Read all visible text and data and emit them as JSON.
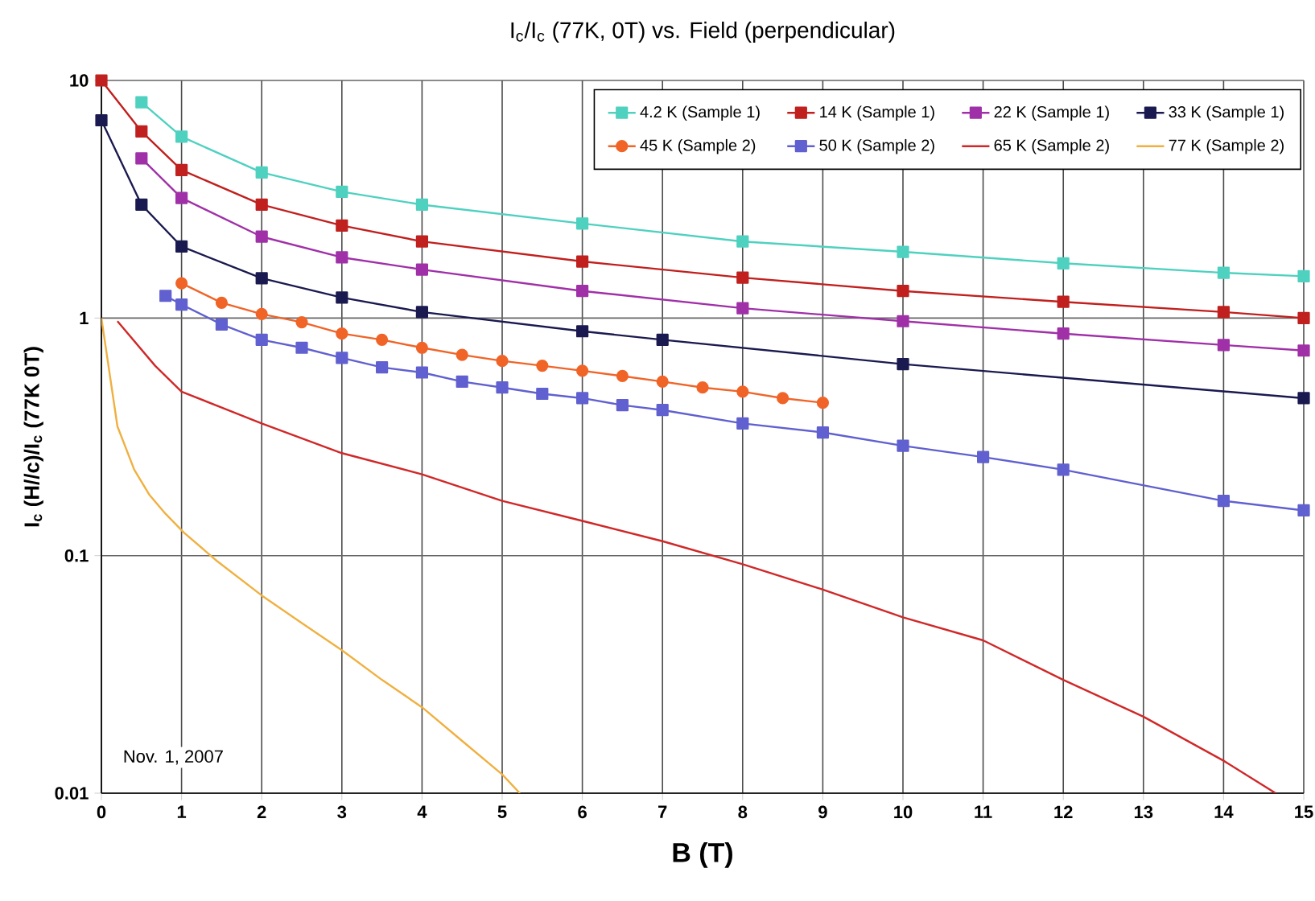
{
  "chart_data": {
    "type": "line",
    "title": "I$_{c}$/I$_{c}$ (77K, 0T) vs. Field (perpendicular)",
    "xlabel": "B (T)",
    "ylabel": "I$_{c}$ (H//c)/I$_{c}$ (77K 0T)",
    "log": "y",
    "grid": true,
    "legend": "top right",
    "xlim": [
      0,
      15
    ],
    "xticks": [
      0,
      1,
      2,
      3,
      4,
      5,
      6,
      7,
      8,
      9,
      10,
      11,
      12,
      13,
      14,
      15
    ],
    "ylim": [
      0.01,
      10
    ],
    "yticks": [
      0.01,
      0.1,
      1,
      10
    ],
    "annotations": [
      "Nov. 1, 2007"
    ],
    "series": [
      {
        "name": "4.2 K (Sample 1)",
        "color": "#4fd1c0",
        "marker": "square",
        "x": [
          0.5,
          1,
          2,
          3,
          4,
          6,
          8,
          10,
          12,
          14,
          15
        ],
        "values": [
          8.1,
          5.8,
          4.1,
          3.4,
          3.0,
          2.5,
          2.1,
          1.9,
          1.7,
          1.55,
          1.5
        ]
      },
      {
        "name": "14 K (Sample 1)",
        "color": "#c0201e",
        "marker": "square",
        "x": [
          0,
          0.5,
          1,
          2,
          3,
          4,
          6,
          8,
          10,
          12,
          14,
          15
        ],
        "values": [
          10,
          6.1,
          4.2,
          3.0,
          2.45,
          2.1,
          1.73,
          1.48,
          1.3,
          1.17,
          1.06,
          1.0
        ]
      },
      {
        "name": "22 K (Sample 1)",
        "color": "#a030a8",
        "marker": "square",
        "x": [
          0.5,
          1,
          2,
          3,
          4,
          6,
          8,
          10,
          12,
          14,
          15
        ],
        "values": [
          4.7,
          3.2,
          2.2,
          1.8,
          1.6,
          1.3,
          1.1,
          0.97,
          0.86,
          0.77,
          0.73
        ]
      },
      {
        "name": "33 K (Sample 1)",
        "color": "#1a1a50",
        "marker": "square",
        "x": [
          0,
          0.5,
          1,
          2,
          3,
          4,
          6,
          7,
          10,
          15
        ],
        "values": [
          6.8,
          3.0,
          2.0,
          1.47,
          1.22,
          1.06,
          0.88,
          0.81,
          0.64,
          0.46
        ]
      },
      {
        "name": "45 K (Sample 2)",
        "color": "#f06428",
        "marker": "circle",
        "x": [
          1,
          1.5,
          2,
          2.5,
          3,
          3.5,
          4,
          4.5,
          5,
          5.5,
          6,
          6.5,
          7,
          7.5,
          8,
          8.5,
          9
        ],
        "values": [
          1.4,
          1.16,
          1.04,
          0.96,
          0.86,
          0.81,
          0.75,
          0.7,
          0.66,
          0.63,
          0.6,
          0.57,
          0.54,
          0.51,
          0.49,
          0.46,
          0.44
        ]
      },
      {
        "name": "50 K (Sample 2)",
        "color": "#6060d0",
        "marker": "square",
        "x": [
          0.8,
          1,
          1.5,
          2,
          2.5,
          3,
          3.5,
          4,
          4.5,
          5,
          5.5,
          6,
          6.5,
          7,
          8,
          9,
          10,
          11,
          12,
          14,
          15
        ],
        "values": [
          1.24,
          1.14,
          0.94,
          0.81,
          0.75,
          0.68,
          0.62,
          0.59,
          0.54,
          0.51,
          0.48,
          0.46,
          0.43,
          0.41,
          0.36,
          0.33,
          0.29,
          0.26,
          0.23,
          0.17,
          0.155
        ]
      },
      {
        "name": "65 K (Sample 2)",
        "color": "#d02828",
        "marker": "none",
        "x": [
          0.2,
          0.67,
          1,
          2,
          3,
          4,
          5,
          6,
          7,
          8,
          9,
          10,
          11,
          12,
          13,
          14,
          14.65
        ],
        "values": [
          0.97,
          0.63,
          0.49,
          0.36,
          0.27,
          0.22,
          0.17,
          0.14,
          0.115,
          0.092,
          0.072,
          0.055,
          0.044,
          0.03,
          0.021,
          0.0137,
          0.01
        ]
      },
      {
        "name": "77 K (Sample 2)",
        "color": "#f0b040",
        "marker": "none",
        "x": [
          0,
          0.2,
          0.41,
          0.6,
          0.8,
          1.03,
          1.44,
          2,
          2.5,
          3,
          3.5,
          4,
          4.5,
          5,
          5.22
        ],
        "values": [
          1.0,
          0.35,
          0.23,
          0.18,
          0.15,
          0.125,
          0.095,
          0.068,
          0.052,
          0.04,
          0.03,
          0.023,
          0.0166,
          0.012,
          0.01
        ]
      }
    ]
  }
}
